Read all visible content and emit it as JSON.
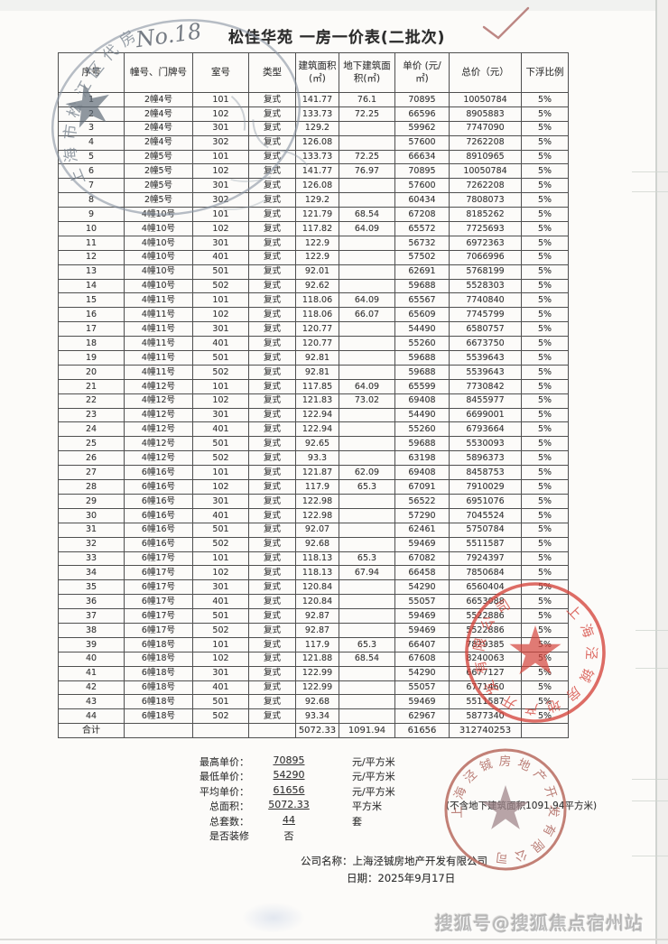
{
  "page": {
    "handwriting": "No.18",
    "title": "松佳华苑 一房一价表(二批次)",
    "watermark": "搜狐号@搜狐焦点宿州站"
  },
  "table": {
    "headers": [
      "序号",
      "幢号、门牌号",
      "室号",
      "类型",
      "建筑面积 (㎡)",
      "地下建筑面积(㎡)",
      "单价 (元/㎡)",
      "总价（元）",
      "下浮比例"
    ],
    "rows": [
      [
        "1",
        "2幢4号",
        "101",
        "复式",
        "141.77",
        "76.1",
        "70895",
        "10050784",
        "5%"
      ],
      [
        "2",
        "2幢4号",
        "102",
        "复式",
        "133.73",
        "72.25",
        "66596",
        "8905883",
        "5%"
      ],
      [
        "3",
        "2幢4号",
        "301",
        "复式",
        "129.2",
        "",
        "59962",
        "7747090",
        "5%"
      ],
      [
        "4",
        "2幢4号",
        "302",
        "复式",
        "126.08",
        "",
        "57600",
        "7262208",
        "5%"
      ],
      [
        "5",
        "2幢5号",
        "101",
        "复式",
        "133.73",
        "72.25",
        "66634",
        "8910965",
        "5%"
      ],
      [
        "6",
        "2幢5号",
        "102",
        "复式",
        "141.77",
        "76.97",
        "70895",
        "10050784",
        "5%"
      ],
      [
        "7",
        "2幢5号",
        "301",
        "复式",
        "126.08",
        "",
        "57600",
        "7262208",
        "5%"
      ],
      [
        "8",
        "2幢5号",
        "302",
        "复式",
        "129.2",
        "",
        "60434",
        "7808073",
        "5%"
      ],
      [
        "9",
        "4幢10号",
        "101",
        "复式",
        "121.79",
        "68.54",
        "67208",
        "8185262",
        "5%"
      ],
      [
        "10",
        "4幢10号",
        "102",
        "复式",
        "117.82",
        "64.09",
        "65572",
        "7725693",
        "5%"
      ],
      [
        "11",
        "4幢10号",
        "301",
        "复式",
        "122.9",
        "",
        "56732",
        "6972363",
        "5%"
      ],
      [
        "12",
        "4幢10号",
        "401",
        "复式",
        "122.9",
        "",
        "57502",
        "7066996",
        "5%"
      ],
      [
        "13",
        "4幢10号",
        "501",
        "复式",
        "92.01",
        "",
        "62691",
        "5768199",
        "5%"
      ],
      [
        "14",
        "4幢10号",
        "502",
        "复式",
        "92.62",
        "",
        "59688",
        "5528303",
        "5%"
      ],
      [
        "15",
        "4幢11号",
        "101",
        "复式",
        "118.06",
        "64.09",
        "65567",
        "7740840",
        "5%"
      ],
      [
        "16",
        "4幢11号",
        "102",
        "复式",
        "118.06",
        "66.07",
        "65609",
        "7745799",
        "5%"
      ],
      [
        "17",
        "4幢11号",
        "301",
        "复式",
        "120.77",
        "",
        "54490",
        "6580757",
        "5%"
      ],
      [
        "18",
        "4幢11号",
        "401",
        "复式",
        "120.77",
        "",
        "55260",
        "6673750",
        "5%"
      ],
      [
        "19",
        "4幢11号",
        "501",
        "复式",
        "92.81",
        "",
        "59688",
        "5539643",
        "5%"
      ],
      [
        "20",
        "4幢11号",
        "502",
        "复式",
        "92.81",
        "",
        "59688",
        "5539643",
        "5%"
      ],
      [
        "21",
        "4幢12号",
        "101",
        "复式",
        "117.85",
        "64.09",
        "65599",
        "7730842",
        "5%"
      ],
      [
        "22",
        "4幢12号",
        "102",
        "复式",
        "121.83",
        "73.02",
        "69408",
        "8455977",
        "5%"
      ],
      [
        "23",
        "4幢12号",
        "301",
        "复式",
        "122.94",
        "",
        "54490",
        "6699001",
        "5%"
      ],
      [
        "24",
        "4幢12号",
        "401",
        "复式",
        "122.94",
        "",
        "55260",
        "6793664",
        "5%"
      ],
      [
        "25",
        "4幢12号",
        "501",
        "复式",
        "92.65",
        "",
        "59688",
        "5530093",
        "5%"
      ],
      [
        "26",
        "4幢12号",
        "502",
        "复式",
        "93.3",
        "",
        "63198",
        "5896373",
        "5%"
      ],
      [
        "27",
        "6幢16号",
        "101",
        "复式",
        "121.87",
        "62.09",
        "69408",
        "8458753",
        "5%"
      ],
      [
        "28",
        "6幢16号",
        "102",
        "复式",
        "117.9",
        "65.3",
        "67091",
        "7910029",
        "5%"
      ],
      [
        "29",
        "6幢16号",
        "301",
        "复式",
        "122.98",
        "",
        "56522",
        "6951076",
        "5%"
      ],
      [
        "30",
        "6幢16号",
        "401",
        "复式",
        "122.98",
        "",
        "57290",
        "7045524",
        "5%"
      ],
      [
        "31",
        "6幢16号",
        "501",
        "复式",
        "92.07",
        "",
        "62461",
        "5750784",
        "5%"
      ],
      [
        "32",
        "6幢16号",
        "502",
        "复式",
        "92.68",
        "",
        "59469",
        "5511587",
        "5%"
      ],
      [
        "33",
        "6幢17号",
        "101",
        "复式",
        "118.13",
        "65.3",
        "67082",
        "7924397",
        "5%"
      ],
      [
        "34",
        "6幢17号",
        "102",
        "复式",
        "118.13",
        "67.94",
        "66458",
        "7850684",
        "5%"
      ],
      [
        "35",
        "6幢17号",
        "301",
        "复式",
        "120.84",
        "",
        "54290",
        "6560404",
        "5%"
      ],
      [
        "36",
        "6幢17号",
        "401",
        "复式",
        "120.84",
        "",
        "55057",
        "6653088",
        "5%"
      ],
      [
        "37",
        "6幢17号",
        "501",
        "复式",
        "92.87",
        "",
        "59469",
        "5522886",
        "5%"
      ],
      [
        "38",
        "6幢17号",
        "502",
        "复式",
        "92.87",
        "",
        "59469",
        "5522886",
        "5%"
      ],
      [
        "39",
        "6幢18号",
        "101",
        "复式",
        "117.9",
        "65.3",
        "66407",
        "7829385",
        "5%"
      ],
      [
        "40",
        "6幢18号",
        "102",
        "复式",
        "121.88",
        "68.54",
        "67608",
        "8240063",
        "5%"
      ],
      [
        "41",
        "6幢18号",
        "301",
        "复式",
        "122.99",
        "",
        "54290",
        "6677127",
        "5%"
      ],
      [
        "42",
        "6幢18号",
        "401",
        "复式",
        "122.99",
        "",
        "55057",
        "6771460",
        "5%"
      ],
      [
        "43",
        "6幢18号",
        "501",
        "复式",
        "92.68",
        "",
        "59469",
        "5511587",
        "5%"
      ],
      [
        "44",
        "6幢18号",
        "502",
        "复式",
        "93.34",
        "",
        "62967",
        "5877340",
        "5%"
      ]
    ],
    "total_row": [
      "合计",
      "",
      "",
      "",
      "5072.33",
      "1091.94",
      "61656",
      "312740253",
      ""
    ]
  },
  "summary": {
    "rows": [
      {
        "label": "最高单价：",
        "value": "70895",
        "unit": "元/平方米",
        "note": "",
        "underline": true
      },
      {
        "label": "最低单价：",
        "value": "54290",
        "unit": "元/平方米",
        "note": "",
        "underline": true
      },
      {
        "label": "平均单价：",
        "value": "61656",
        "unit": "元/平方米",
        "note": "",
        "underline": true
      },
      {
        "label": "总面积：",
        "value": "5072.33",
        "unit": "平方米",
        "note": "(不含地下建筑面积1091.94平方米)",
        "underline": true
      },
      {
        "label": "总套数：",
        "value": "44",
        "unit": "套",
        "note": "",
        "underline": true
      },
      {
        "label": "是否装修",
        "value": "否",
        "unit": "",
        "note": "",
        "underline": false
      }
    ]
  },
  "footer": {
    "company_label": "公司名称：",
    "company": "上海泾铖房地产开发有限公司",
    "date_label": "日期：",
    "date": "2025年9月17日"
  },
  "stamps": {
    "top_left_seal_text": "上海市松江区代房",
    "company_seal_text": "上海泾铖房地产开发有限公司",
    "seal_red": "#d5453c",
    "seal_red_faded": "#b96b60",
    "seal_blue_gray": "#6e7a87"
  }
}
